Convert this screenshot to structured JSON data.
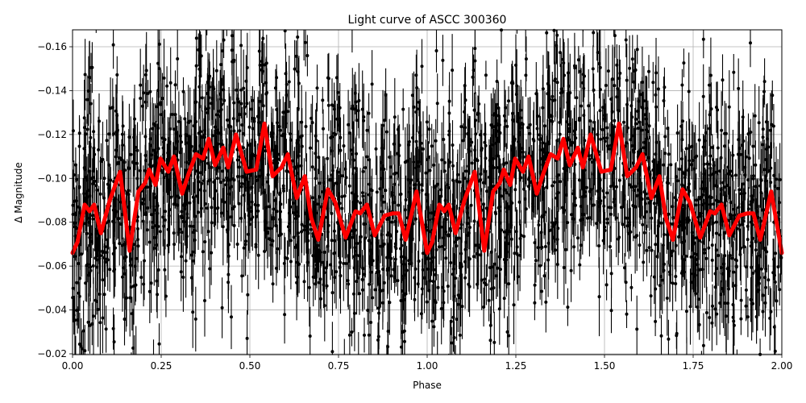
{
  "chart_data": {
    "type": "scatter",
    "title": "Light curve of ASCC 300360",
    "xlabel": "Phase",
    "ylabel": "Δ Magnitude",
    "xlim": [
      0.0,
      2.0
    ],
    "ylim": [
      -0.02,
      -0.168
    ],
    "y_inverted": true,
    "grid": true,
    "legend": null,
    "xticks": [
      "0.00",
      "0.25",
      "0.50",
      "0.75",
      "1.00",
      "1.25",
      "1.50",
      "1.75",
      "2.00"
    ],
    "xtick_values": [
      0.0,
      0.25,
      0.5,
      0.75,
      1.0,
      1.25,
      1.5,
      1.75,
      2.0
    ],
    "yticks": [
      "−0.16",
      "−0.14",
      "−0.12",
      "−0.10",
      "−0.08",
      "−0.06",
      "−0.04",
      "−0.02"
    ],
    "ytick_values": [
      -0.16,
      -0.14,
      -0.12,
      -0.1,
      -0.08,
      -0.06,
      -0.04,
      -0.02
    ],
    "series": [
      {
        "name": "observations",
        "style": "black points with vertical error bars",
        "color": "#000000",
        "description": "Dense scatter of photometric measurements phase-folded over two cycles, values spread roughly from -0.02 to -0.17 with error bars",
        "approx_range": [
          -0.02,
          -0.168
        ]
      },
      {
        "name": "binned model",
        "style": "thick red line",
        "color": "#ff0000",
        "x": [
          0.0,
          0.014,
          0.034,
          0.048,
          0.061,
          0.08,
          0.105,
          0.134,
          0.161,
          0.186,
          0.205,
          0.216,
          0.234,
          0.248,
          0.27,
          0.286,
          0.309,
          0.327,
          0.348,
          0.368,
          0.384,
          0.402,
          0.425,
          0.439,
          0.461,
          0.491,
          0.518,
          0.541,
          0.564,
          0.589,
          0.607,
          0.632,
          0.655,
          0.673,
          0.693,
          0.72,
          0.741,
          0.77,
          0.798,
          0.811,
          0.83,
          0.852,
          0.88,
          0.902,
          0.92,
          0.939,
          0.97,
          1.0
        ],
        "y": [
          -0.066,
          -0.071,
          -0.088,
          -0.085,
          -0.088,
          -0.075,
          -0.09,
          -0.103,
          -0.067,
          -0.094,
          -0.098,
          -0.104,
          -0.097,
          -0.109,
          -0.103,
          -0.11,
          -0.093,
          -0.102,
          -0.111,
          -0.109,
          -0.118,
          -0.106,
          -0.114,
          -0.105,
          -0.12,
          -0.103,
          -0.104,
          -0.125,
          -0.101,
          -0.105,
          -0.111,
          -0.091,
          -0.101,
          -0.082,
          -0.072,
          -0.095,
          -0.089,
          -0.073,
          -0.085,
          -0.084,
          -0.088,
          -0.074,
          -0.083,
          -0.084,
          -0.084,
          -0.072,
          -0.094,
          -0.066
        ],
        "repeats_period": 1.0
      }
    ]
  }
}
